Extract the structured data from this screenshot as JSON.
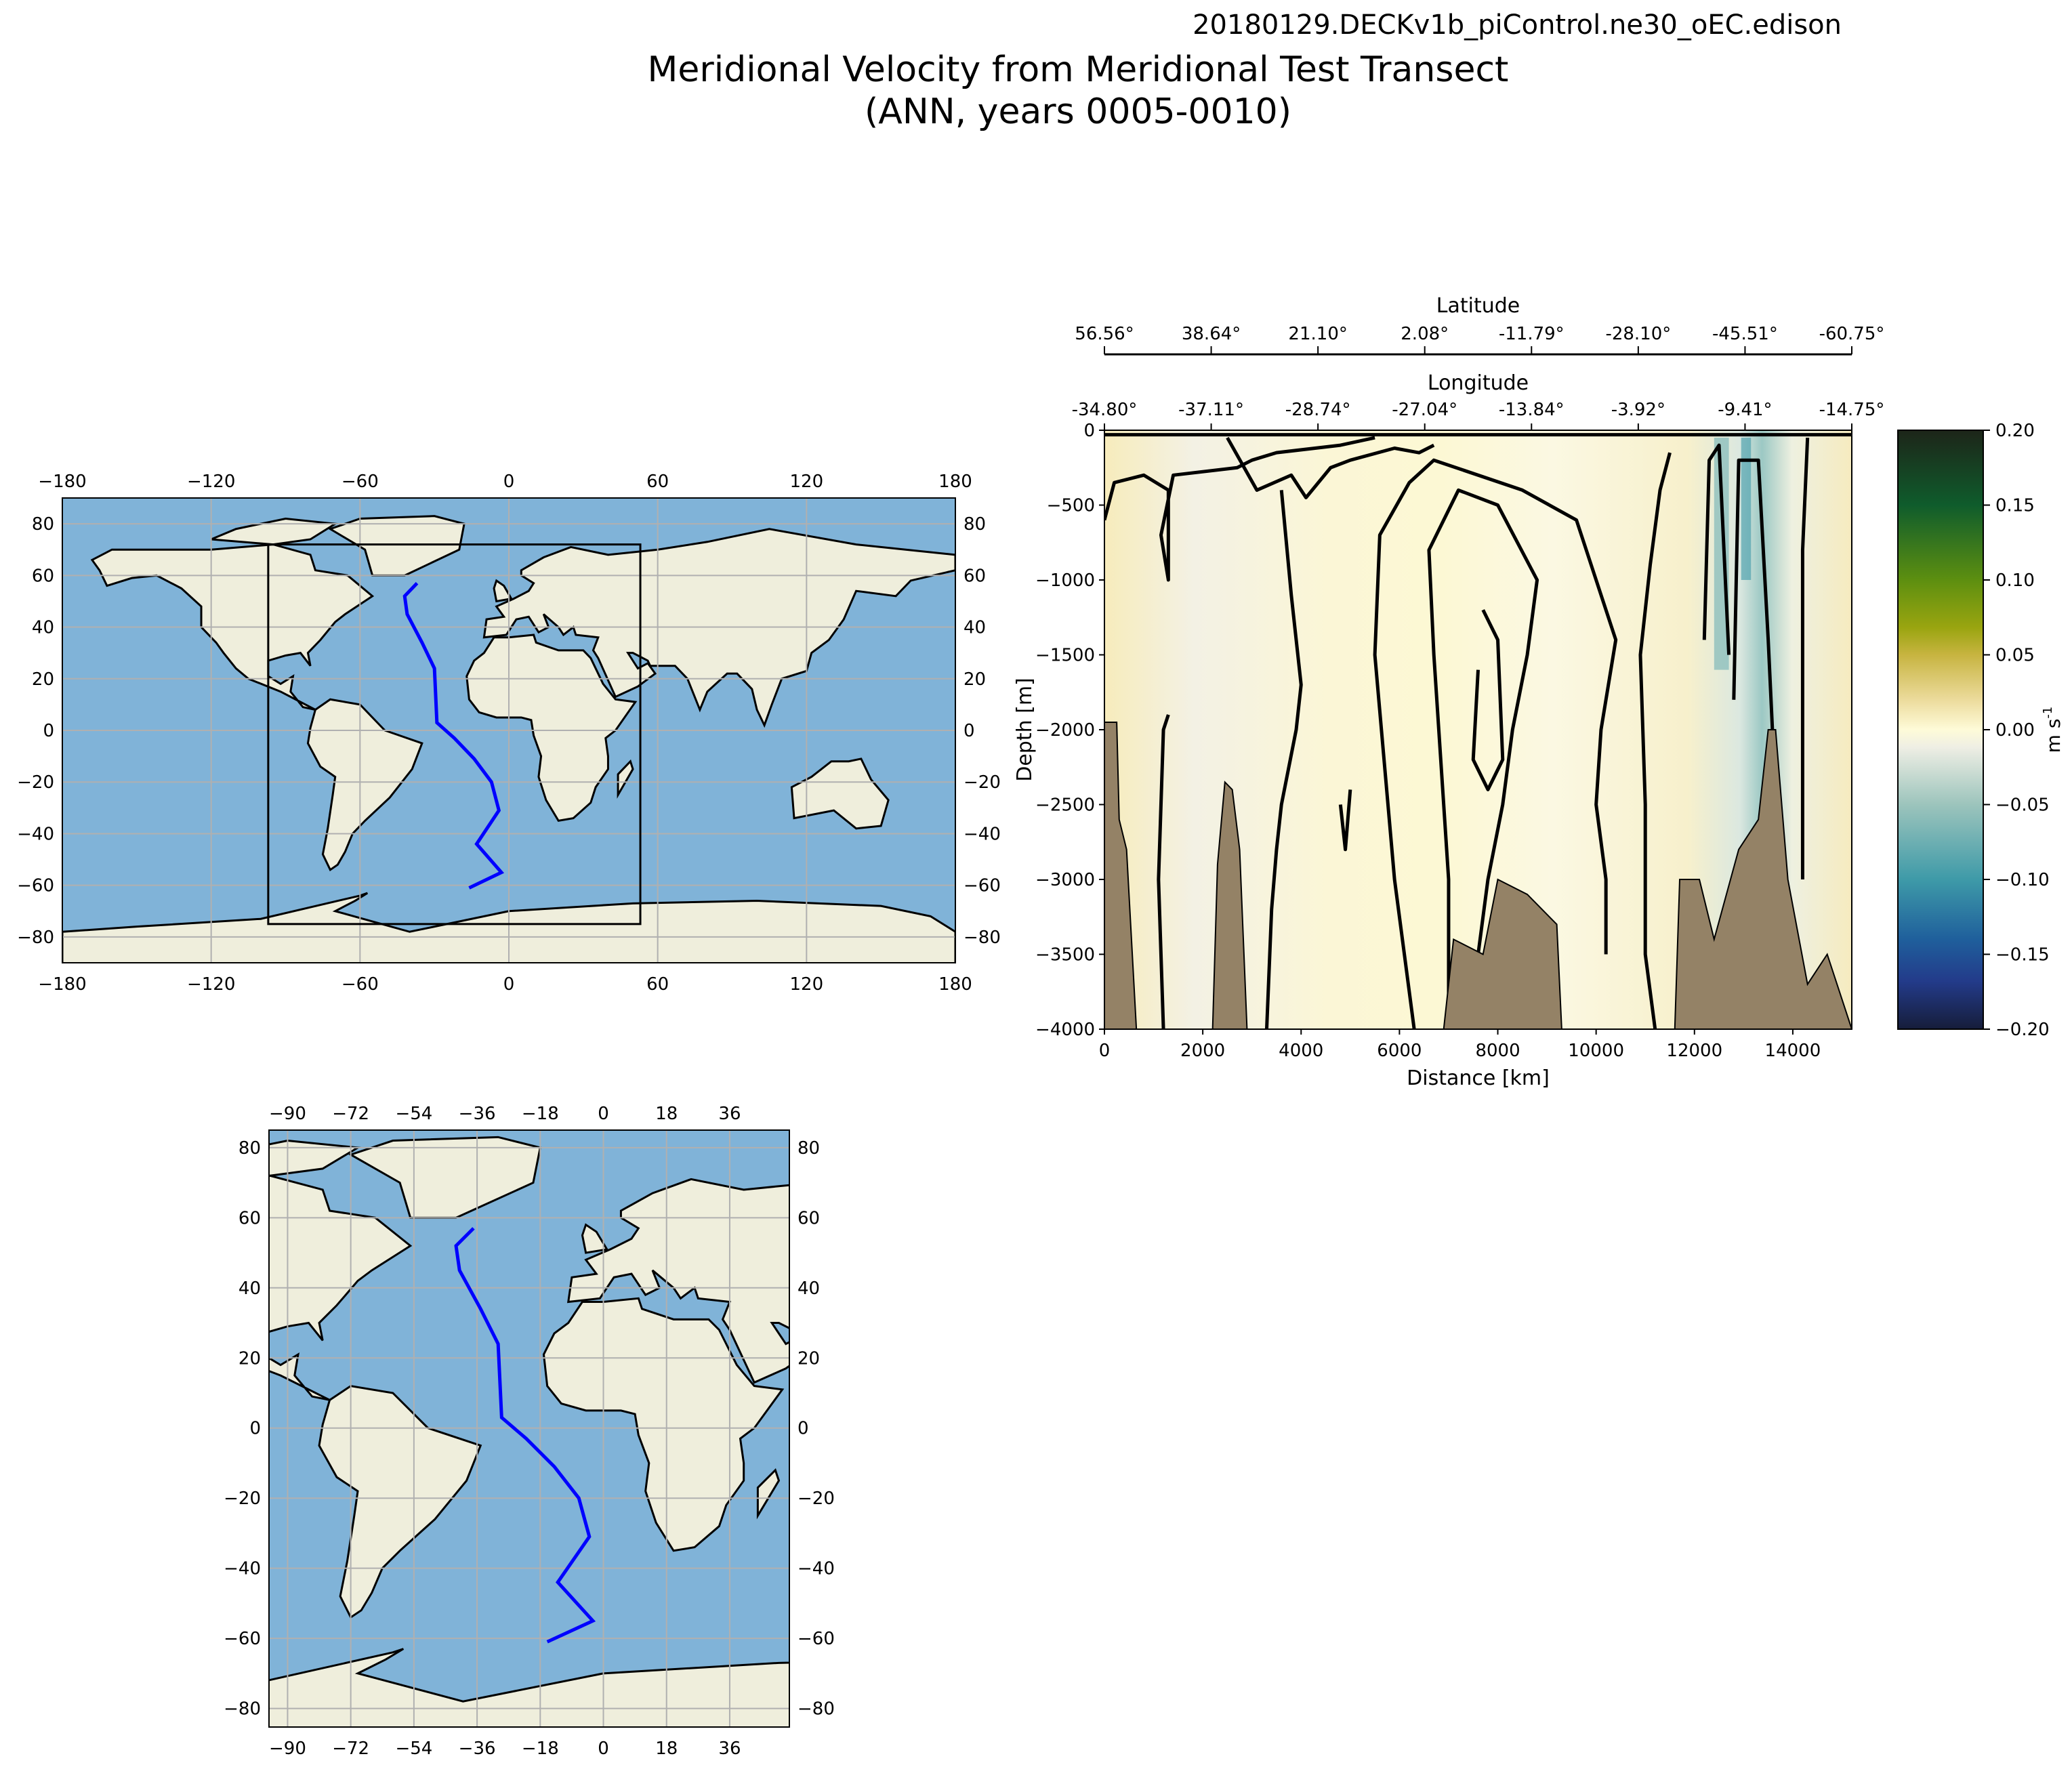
{
  "header": {
    "run_name": "20180129.DECKv1b_piControl.ne30_oEC.edison",
    "title_line1": "Meridional Velocity from Meridional Test Transect",
    "title_line2": "(ANN, years 0005-0010)"
  },
  "colors": {
    "ocean": "#80b3d8",
    "land": "#efeedc",
    "transect": "#0000ff",
    "bathymetry": "#948266",
    "grid": "#b0b0b0"
  },
  "chart_data": [
    {
      "id": "global_map",
      "type": "map",
      "xlim": [
        -180,
        180
      ],
      "ylim": [
        -90,
        90
      ],
      "xticks": [
        -180,
        -120,
        -60,
        0,
        60,
        120,
        180
      ],
      "yticks": [
        -80,
        -60,
        -40,
        -20,
        0,
        20,
        40,
        60,
        80
      ],
      "zoom_box": {
        "lon": [
          -97,
          53
        ],
        "lat": [
          -75,
          72
        ]
      },
      "transect": [
        [
          -37,
          57
        ],
        [
          -42,
          52
        ],
        [
          -41,
          45
        ],
        [
          -35,
          34
        ],
        [
          -30,
          24
        ],
        [
          -29,
          3
        ],
        [
          -22,
          -3
        ],
        [
          -14,
          -11
        ],
        [
          -7,
          -20
        ],
        [
          -4,
          -31
        ],
        [
          -13,
          -44
        ],
        [
          -3,
          -55
        ],
        [
          -16,
          -61
        ]
      ]
    },
    {
      "id": "section",
      "type": "heatmap",
      "xlabel": "Distance [km]",
      "ylabel": "Depth [m]",
      "xlim": [
        0,
        15200
      ],
      "ylim": [
        -4000,
        0
      ],
      "xticks": [
        0,
        2000,
        4000,
        6000,
        8000,
        10000,
        12000,
        14000
      ],
      "yticks": [
        0,
        -500,
        -1000,
        -1500,
        -2000,
        -2500,
        -3000,
        -3500,
        -4000
      ],
      "top_axis_1": {
        "label": "Latitude",
        "ticks": [
          "56.56°",
          "38.64°",
          "21.10°",
          "2.08°",
          "-11.79°",
          "-28.10°",
          "-45.51°",
          "-60.75°"
        ]
      },
      "top_axis_2": {
        "label": "Longitude",
        "ticks": [
          "-34.80°",
          "-37.11°",
          "-28.74°",
          "-27.04°",
          "-13.84°",
          "-3.92°",
          "-9.41°",
          "-14.75°"
        ]
      },
      "bathymetry": [
        [
          0,
          -1950
        ],
        [
          250,
          -1950
        ],
        [
          300,
          -2600
        ],
        [
          450,
          -2800
        ],
        [
          550,
          -3400
        ],
        [
          650,
          -4000
        ],
        [
          2200,
          -4000
        ],
        [
          2300,
          -2900
        ],
        [
          2450,
          -2350
        ],
        [
          2600,
          -2400
        ],
        [
          2750,
          -2800
        ],
        [
          2900,
          -4000
        ],
        [
          6900,
          -4000
        ],
        [
          7100,
          -3400
        ],
        [
          7700,
          -3500
        ],
        [
          8000,
          -3000
        ],
        [
          8600,
          -3100
        ],
        [
          9200,
          -3300
        ],
        [
          9300,
          -4000
        ],
        [
          11600,
          -4000
        ],
        [
          11700,
          -3000
        ],
        [
          12100,
          -3000
        ],
        [
          12400,
          -3400
        ],
        [
          12900,
          -2800
        ],
        [
          13300,
          -2600
        ],
        [
          13500,
          -2000
        ],
        [
          13650,
          -2000
        ],
        [
          13900,
          -3000
        ],
        [
          14300,
          -3700
        ],
        [
          14700,
          -3500
        ],
        [
          15200,
          -4000
        ]
      ]
    },
    {
      "id": "colorbar",
      "type": "colorbar",
      "label": "m s",
      "label_exp": "-1",
      "range": [
        -0.2,
        0.2
      ],
      "ticks": [
        "0.20",
        "0.15",
        "0.10",
        "0.05",
        "0.00",
        "−0.05",
        "−0.10",
        "−0.15",
        "−0.20"
      ]
    },
    {
      "id": "zoom_map",
      "type": "map",
      "xlim": [
        -95.3,
        53
      ],
      "ylim": [
        -85.3,
        85
      ],
      "xticks": [
        -90,
        -72,
        -54,
        -36,
        -18,
        0,
        18,
        36
      ],
      "yticks": [
        -80,
        -60,
        -40,
        -20,
        0,
        20,
        40,
        60,
        80
      ]
    }
  ]
}
